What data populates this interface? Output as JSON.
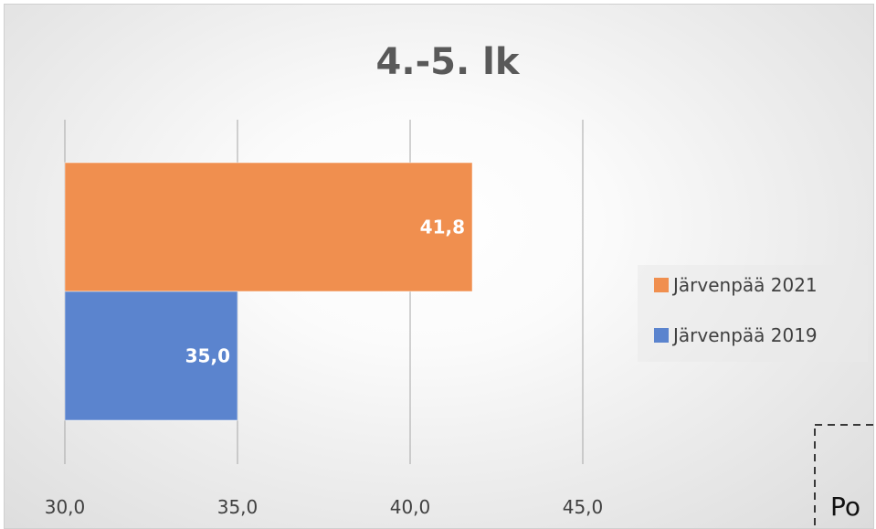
{
  "chart_data": {
    "type": "bar",
    "orientation": "horizontal",
    "title": "4.-5. lk",
    "xlim": [
      30,
      45
    ],
    "x_ticks": [
      "30,0",
      "35,0",
      "40,0",
      "45,0"
    ],
    "x_tick_values": [
      30,
      35,
      40,
      45
    ],
    "grid": true,
    "legend_position": "right",
    "series": [
      {
        "name": "Järvenpää 2021",
        "values": [
          41.8
        ],
        "label": "41,8",
        "color": "#F08F4F"
      },
      {
        "name": "Järvenpää 2019",
        "values": [
          35.0
        ],
        "label": "35,0",
        "color": "#5B84CE"
      }
    ]
  },
  "corner_text": "Po"
}
